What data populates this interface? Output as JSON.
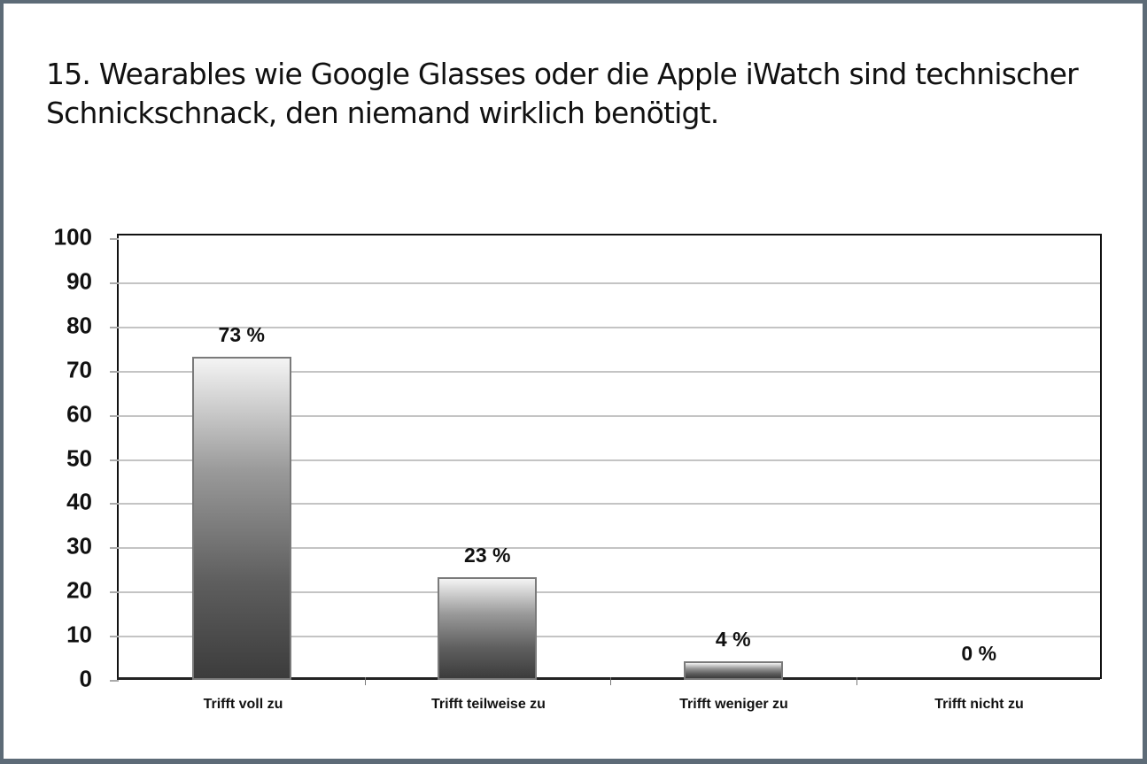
{
  "slide": {
    "title_line1": "15. Wearables wie Google Glasses oder die Apple iWatch sind technischer",
    "title_line2": "Schnickschnack, den niemand wirklich benötigt."
  },
  "axis": {
    "y_ticks": [
      "100",
      "90",
      "80",
      "70",
      "60",
      "50",
      "40",
      "30",
      "20",
      "10",
      "0"
    ]
  },
  "labels": {
    "cat0": "Trifft voll zu",
    "cat1": "Trifft teilweise zu",
    "cat2": "Trifft weniger zu",
    "cat3": "Trifft nicht zu",
    "val0": "73 %",
    "val1": "23 %",
    "val2": "4 %",
    "val3": "0 %"
  },
  "chart_data": {
    "type": "bar",
    "title": "15. Wearables wie Google Glasses oder die Apple iWatch sind technischer Schnickschnack, den niemand wirklich benötigt.",
    "categories": [
      "Trifft voll zu",
      "Trifft teilweise zu",
      "Trifft weniger zu",
      "Trifft nicht zu"
    ],
    "values": [
      73,
      23,
      4,
      0
    ],
    "data_labels": [
      "73 %",
      "23 %",
      "4 %",
      "0 %"
    ],
    "xlabel": "",
    "ylabel": "",
    "ylim": [
      0,
      100
    ],
    "y_ticks": [
      0,
      10,
      20,
      30,
      40,
      50,
      60,
      70,
      80,
      90,
      100
    ],
    "grid": true,
    "legend": null,
    "colors": {
      "bar_gradient_top": "#f4f4f4",
      "bar_gradient_bottom": "#3c3c3c",
      "bar_border": "#7a7a7a",
      "grid": "#c4c4c4",
      "frame": "#5d6b77"
    }
  }
}
